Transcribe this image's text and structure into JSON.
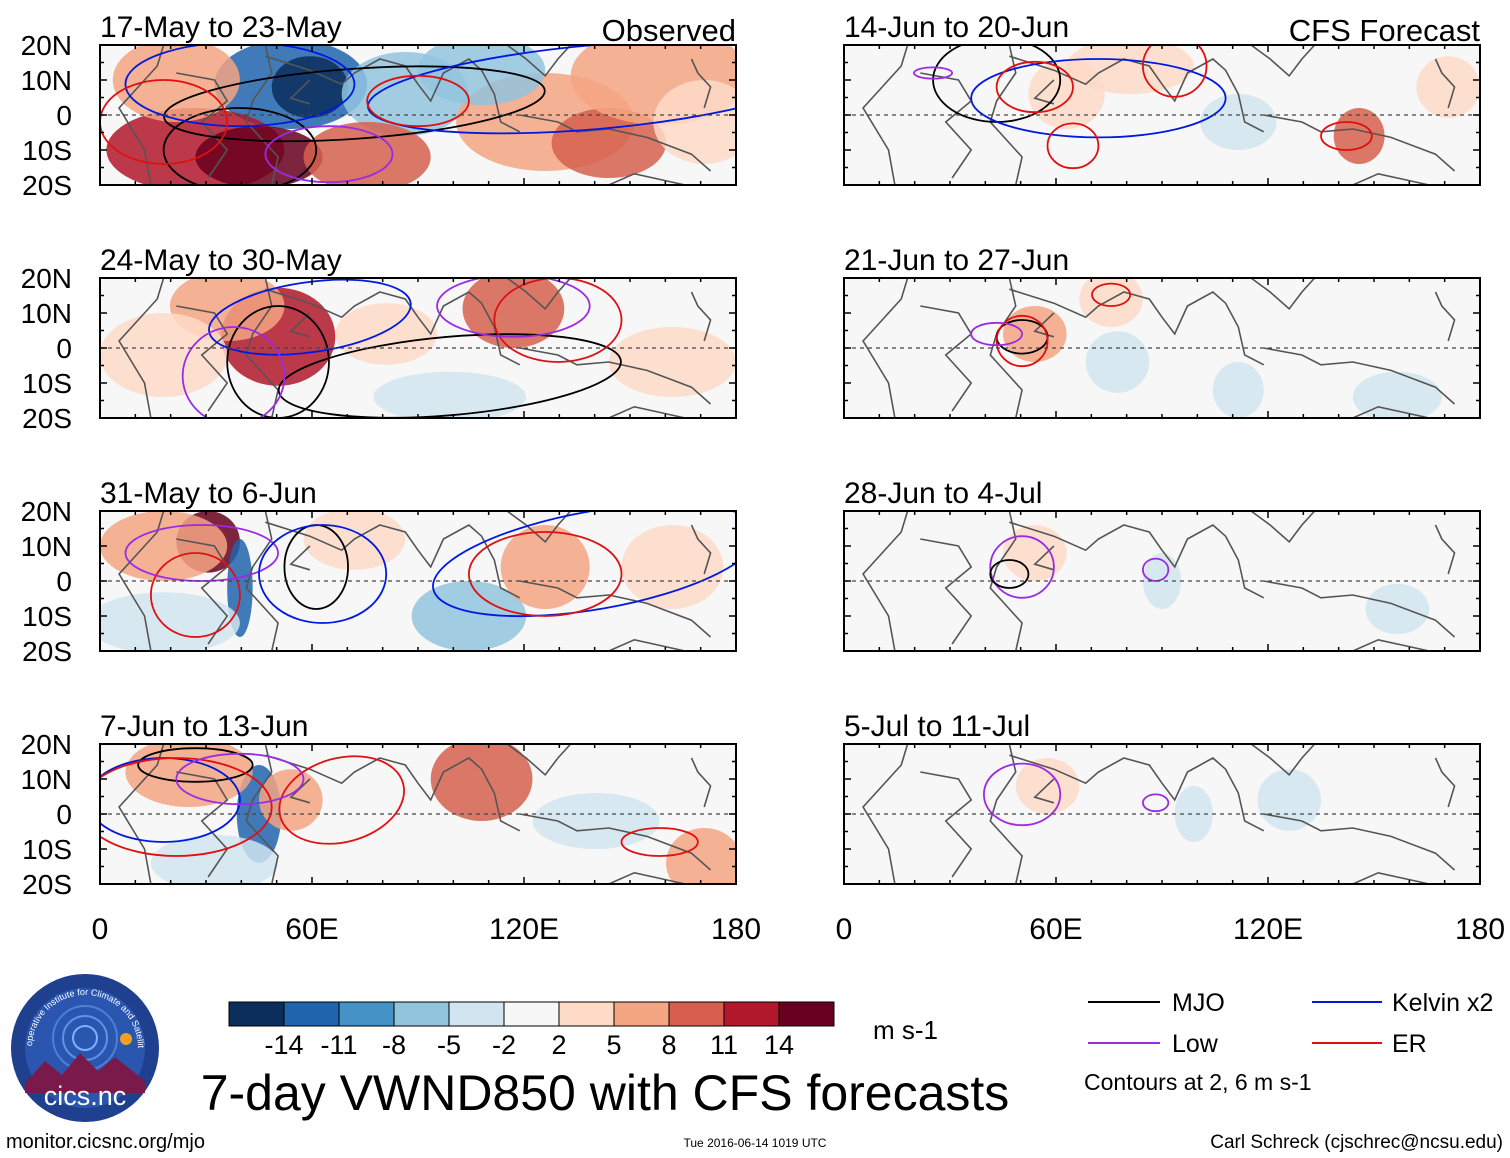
{
  "header": {
    "observed_label": "Observed",
    "forecast_label": "CFS Forecast"
  },
  "observed_panels": [
    {
      "title": "17-May to 23-May"
    },
    {
      "title": "24-May to 30-May"
    },
    {
      "title": "31-May to 6-Jun"
    },
    {
      "title": "7-Jun to 13-Jun"
    }
  ],
  "forecast_panels": [
    {
      "title": "14-Jun to 20-Jun"
    },
    {
      "title": "21-Jun to 27-Jun"
    },
    {
      "title": "28-Jun to 4-Jul"
    },
    {
      "title": "5-Jul to 11-Jul"
    }
  ],
  "axes": {
    "lat_labels": [
      "20N",
      "10N",
      "0",
      "10S",
      "20S"
    ],
    "lon_labels": [
      "0",
      "60E",
      "120E",
      "180"
    ]
  },
  "colorbar": {
    "colors": [
      "#0b2e5c",
      "#2064ad",
      "#4492c6",
      "#92c4de",
      "#d1e5f0",
      "#f7f7f7",
      "#fddbc7",
      "#f4a582",
      "#d6604d",
      "#b2182b",
      "#67001f"
    ],
    "tick_labels": [
      "-14",
      "-11",
      "-8",
      "-5",
      "-2",
      "2",
      "5",
      "8",
      "11",
      "14"
    ],
    "units": "m s-1"
  },
  "title": "7-day VWND850 with CFS forecasts",
  "legend": {
    "items": [
      {
        "label": "MJO",
        "color": "#000000"
      },
      {
        "label": "Kelvin x2",
        "color": "#0019e0"
      },
      {
        "label": "Low",
        "color": "#9a2be2"
      },
      {
        "label": "ER",
        "color": "#e01010"
      }
    ],
    "note": "Contours at 2, 6 m s-1"
  },
  "logo": {
    "text": "cics.nc",
    "ring_text": "Cooperative Institute for Climate and Satellites"
  },
  "footer": {
    "url": "monitor.cicsnc.org/mjo",
    "timestamp": "Tue 2016-06-14 1019 UTC",
    "credit": "Carl Schreck (cjschrec@ncsu.edu)"
  }
}
